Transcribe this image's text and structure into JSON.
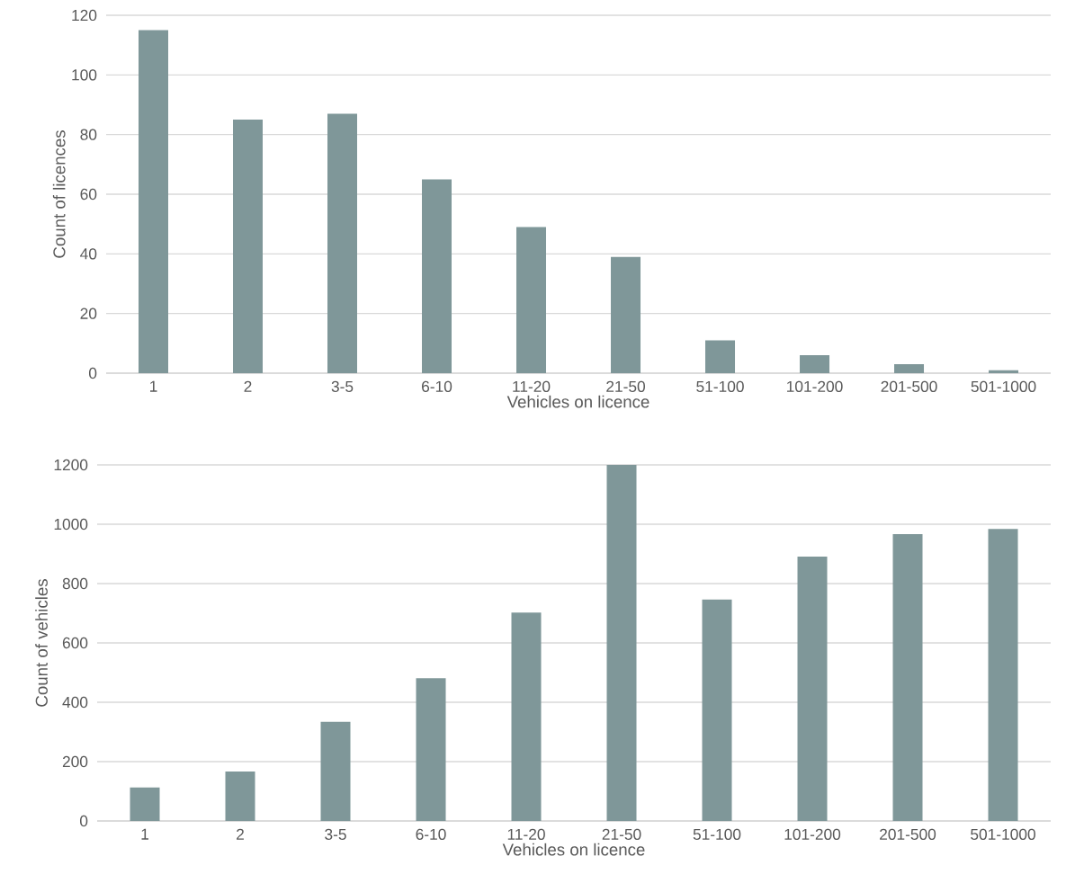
{
  "chart_data": [
    {
      "type": "bar",
      "categories": [
        "1",
        "2",
        "3-5",
        "6-10",
        "11-20",
        "21-50",
        "51-100",
        "101-200",
        "201-500",
        "501-1000"
      ],
      "values": [
        115,
        85,
        87,
        65,
        49,
        39,
        11,
        6,
        3,
        1
      ],
      "color": "#7f9799",
      "ylim": [
        0,
        120
      ],
      "yticks": [
        0,
        20,
        40,
        60,
        80,
        100,
        120
      ],
      "xlabel": "Vehicles on licence",
      "ylabel": "Count of licences",
      "grid": "y"
    },
    {
      "type": "bar",
      "categories": [
        "1",
        "2",
        "3-5",
        "6-10",
        "11-20",
        "21-50",
        "51-100",
        "101-200",
        "201-500",
        "501-1000"
      ],
      "values": [
        113,
        167,
        334,
        481,
        702,
        1200,
        746,
        891,
        967,
        984
      ],
      "color": "#7f9799",
      "ylim": [
        0,
        1200
      ],
      "yticks": [
        0,
        200,
        400,
        600,
        800,
        1000,
        1200
      ],
      "xlabel": "Vehicles on licence",
      "ylabel": "Count of vehicles",
      "grid": "y"
    }
  ]
}
